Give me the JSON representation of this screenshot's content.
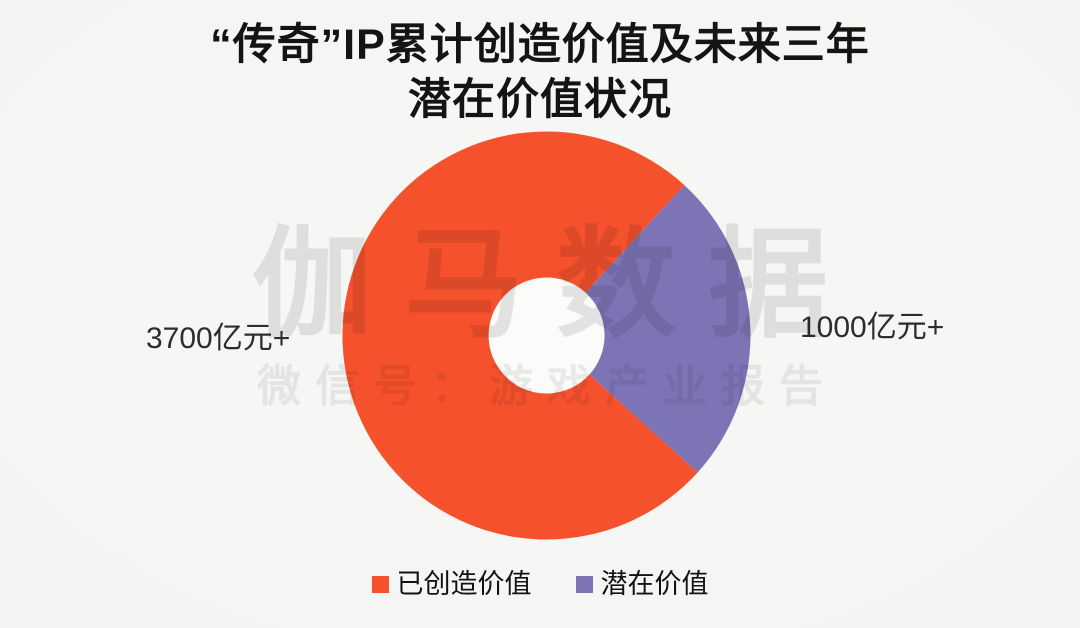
{
  "title": {
    "line1": "“传奇”IP累计创造价值及未来三年",
    "line2": "潜在价值状况"
  },
  "chart_data": {
    "type": "pie",
    "variant": "donut",
    "title": "“传奇”IP累计创造价值及未来三年潜在价值状况",
    "unit": "亿元",
    "legend_position": "bottom",
    "series": [
      {
        "name": "已创造价值",
        "value": 3700,
        "value_label": "3700亿元+",
        "color": "#f4512c",
        "label_side": "left"
      },
      {
        "name": "潜在价值",
        "value": 1000,
        "value_label": "1000亿元+",
        "color": "#7c74b5",
        "label_side": "right"
      }
    ],
    "display": {
      "potential_start_deg": 42.5,
      "potential_end_deg": 132.2,
      "hole_ratio": 0.285,
      "hole_color": "#fbfbf9"
    }
  },
  "watermark": {
    "brand": "伽马数据",
    "wechat": "微信号：游戏产业报告"
  }
}
